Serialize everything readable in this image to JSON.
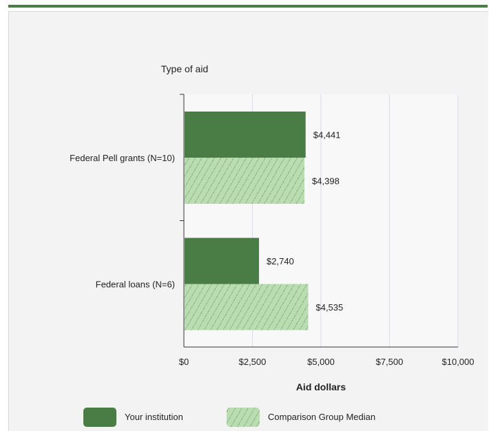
{
  "chart_data": {
    "type": "bar",
    "orientation": "horizontal",
    "title": "",
    "ylabel": "Type of aid",
    "xlabel": "Aid dollars",
    "categories": [
      "Federal Pell grants (N=10)",
      "Federal loans (N=6)"
    ],
    "series": [
      {
        "name": "Your institution",
        "values": [
          4441,
          2740
        ],
        "labels": [
          "$4,441",
          "$2,740"
        ],
        "color": "#4a7d45",
        "pattern": "solid"
      },
      {
        "name": "Comparison Group Median",
        "values": [
          4398,
          4535
        ],
        "labels": [
          "$4,398",
          "$4,535"
        ],
        "color": "#b9ddb0",
        "pattern": "hatched"
      }
    ],
    "xlim": [
      0,
      10000
    ],
    "xticks": [
      0,
      2500,
      5000,
      7500,
      10000
    ],
    "xtick_labels": [
      "$0",
      "$2,500",
      "$5,000",
      "$7,500",
      "$10,000"
    ],
    "grid": true,
    "legend_position": "bottom"
  }
}
